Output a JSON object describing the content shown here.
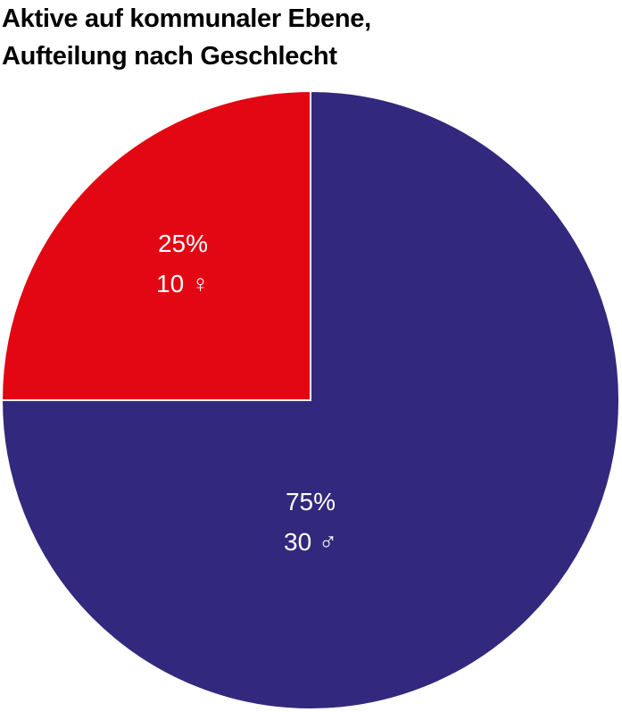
{
  "title": {
    "line1": "Aktive auf kommunaler Ebene,",
    "line2": "Aufteilung nach Geschlecht"
  },
  "chart_data": {
    "type": "pie",
    "title": "Aktive auf kommunaler Ebene, Aufteilung nach Geschlecht",
    "slices": [
      {
        "name": "♀",
        "value": 10,
        "percent": 25,
        "percent_label": "25%",
        "count_label": "10 ♀",
        "color": "#e30613"
      },
      {
        "name": "♂",
        "value": 30,
        "percent": 75,
        "percent_label": "75%",
        "count_label": "30 ♂",
        "color": "#32287d"
      }
    ],
    "start_angle": "12 o'clock",
    "direction": "counter-clockwise for first slice",
    "slice_border_color": "#ffffff"
  }
}
